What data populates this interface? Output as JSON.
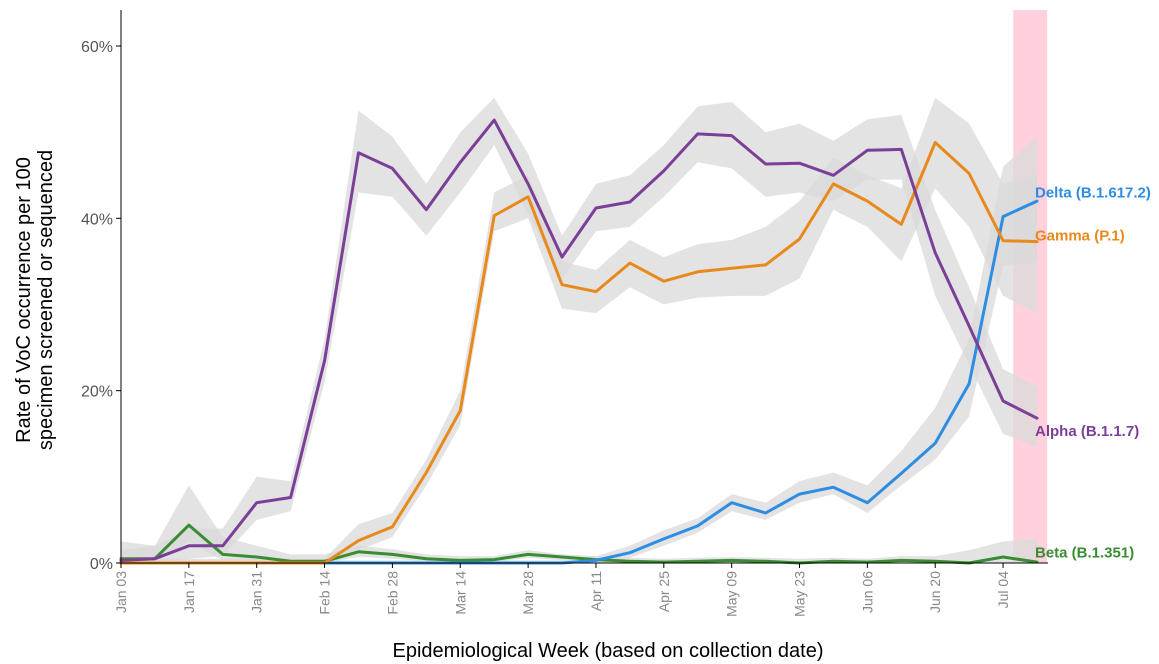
{
  "chart_data": {
    "type": "line",
    "xlabel": "Epidemiological Week (based on collection date)",
    "ylabel_lines": [
      "Rate of VoC occurrence per 100",
      "specimen screened or sequenced"
    ],
    "ylim": [
      0,
      64
    ],
    "yticks": [
      {
        "value": 0,
        "label": "0%"
      },
      {
        "value": 20,
        "label": "20%"
      },
      {
        "value": 40,
        "label": "40%"
      },
      {
        "value": 60,
        "label": "60%"
      }
    ],
    "xlim": [
      0,
      27.5
    ],
    "xticks": [
      {
        "value": 0,
        "label": "Jan 03"
      },
      {
        "value": 2,
        "label": "Jan 17"
      },
      {
        "value": 4,
        "label": "Jan 31"
      },
      {
        "value": 6,
        "label": "Feb 14"
      },
      {
        "value": 8,
        "label": "Feb 28"
      },
      {
        "value": 10,
        "label": "Mar 14"
      },
      {
        "value": 12,
        "label": "Mar 28"
      },
      {
        "value": 14,
        "label": "Apr 11"
      },
      {
        "value": 16,
        "label": "Apr 25"
      },
      {
        "value": 18,
        "label": "May 09"
      },
      {
        "value": 20,
        "label": "May 23"
      },
      {
        "value": 22,
        "label": "Jun 06"
      },
      {
        "value": 24,
        "label": "Jun 20"
      },
      {
        "value": 26,
        "label": "Jul 04"
      }
    ],
    "highlight": {
      "from": 26.3,
      "to": 27.3,
      "color": "#ffd1dc"
    },
    "ci_color": "#d9d9d9",
    "series": [
      {
        "name": "Alpha (B.1.1.7)",
        "color": "#7b3f98",
        "x": [
          0,
          1,
          2,
          3,
          4,
          5,
          6,
          7,
          8,
          9,
          10,
          11,
          12,
          13,
          14,
          15,
          16,
          17,
          18,
          19,
          20,
          21,
          22,
          23,
          24,
          25,
          26,
          27
        ],
        "values": [
          0.3,
          0.5,
          2.0,
          2.0,
          7.0,
          7.6,
          23.5,
          47.6,
          45.8,
          41.0,
          46.5,
          51.4,
          44.0,
          35.5,
          41.2,
          41.9,
          45.5,
          49.8,
          49.6,
          46.3,
          46.4,
          45.0,
          47.9,
          48.0,
          36.0,
          27.5,
          18.8,
          16.8
        ],
        "lower": [
          0,
          0,
          0.5,
          0.8,
          5,
          6,
          21,
          43,
          42.5,
          38,
          43,
          48.5,
          40.5,
          33,
          38.5,
          39,
          42.5,
          46.5,
          45.8,
          42.5,
          43,
          42,
          44.5,
          44.5,
          31,
          23,
          15,
          13.5
        ],
        "upper": [
          1.5,
          2,
          4,
          4,
          10,
          9.5,
          26,
          52.5,
          49.5,
          44,
          50,
          54,
          47.5,
          38,
          44,
          45,
          48.5,
          53,
          53.5,
          50,
          51,
          49,
          51.5,
          52,
          41,
          32,
          22.5,
          20.5
        ]
      },
      {
        "name": "Gamma (P.1)",
        "color": "#e8891b",
        "x": [
          0,
          1,
          2,
          3,
          4,
          5,
          6,
          7,
          8,
          9,
          10,
          11,
          12,
          13,
          14,
          15,
          16,
          17,
          18,
          19,
          20,
          21,
          22,
          23,
          24,
          25,
          26,
          27
        ],
        "values": [
          0,
          0,
          0,
          0,
          0,
          0,
          0,
          2.6,
          4.2,
          10.5,
          17.7,
          40.3,
          42.5,
          32.3,
          31.5,
          34.8,
          32.7,
          33.8,
          34.2,
          34.6,
          37.6,
          44.0,
          42.0,
          39.3,
          48.8,
          45.2,
          37.4,
          37.3
        ],
        "lower": [
          0,
          0,
          0,
          0,
          0,
          0,
          0,
          1.5,
          3,
          9,
          16,
          38.5,
          40,
          29.5,
          29,
          32,
          30,
          30.8,
          31,
          31,
          33,
          41,
          39,
          35,
          43.5,
          39,
          31,
          29
        ],
        "upper": [
          0.5,
          0.5,
          0.5,
          0.5,
          0.5,
          0.5,
          0.5,
          4.5,
          5.8,
          12,
          20,
          43,
          45,
          35,
          34,
          37.5,
          35.5,
          37,
          37.5,
          39,
          42,
          47,
          45,
          43.5,
          54,
          51,
          44,
          45
        ]
      },
      {
        "name": "Delta (B.1.617.2)",
        "color": "#2e8de3",
        "x": [
          0,
          1,
          2,
          3,
          4,
          5,
          6,
          7,
          8,
          9,
          10,
          11,
          12,
          13,
          14,
          15,
          16,
          17,
          18,
          19,
          20,
          21,
          22,
          23,
          24,
          25,
          26,
          27
        ],
        "values": [
          0,
          0,
          0,
          0,
          0,
          0,
          0,
          0,
          0,
          0,
          0,
          0,
          0,
          0,
          0.3,
          1.2,
          2.8,
          4.3,
          7.0,
          5.8,
          8.0,
          8.8,
          7.0,
          10.4,
          13.9,
          20.8,
          40.2,
          42.0
        ],
        "lower": [
          0,
          0,
          0,
          0,
          0,
          0,
          0,
          0,
          0,
          0,
          0,
          0,
          0,
          0,
          0,
          0.6,
          2,
          3.5,
          6,
          5,
          7,
          8,
          5.8,
          9,
          12,
          17,
          34.5,
          35
        ],
        "upper": [
          0.3,
          0.3,
          0.3,
          0.3,
          0.3,
          0.3,
          0.3,
          0.3,
          0.3,
          0.3,
          0.3,
          0.3,
          0.3,
          0.3,
          0.8,
          2,
          3.8,
          5.2,
          8,
          7,
          9.5,
          10.5,
          9,
          13,
          18,
          26,
          46,
          49.5
        ]
      },
      {
        "name": "Beta (B.1.351)",
        "color": "#3a8c32",
        "x": [
          0,
          1,
          2,
          3,
          4,
          5,
          6,
          7,
          8,
          9,
          10,
          11,
          12,
          13,
          14,
          15,
          16,
          17,
          18,
          19,
          20,
          21,
          22,
          23,
          24,
          25,
          26,
          27
        ],
        "values": [
          0.5,
          0.5,
          4.4,
          1.0,
          0.7,
          0.2,
          0.2,
          1.3,
          1.0,
          0.5,
          0.3,
          0.4,
          1.0,
          0.7,
          0.4,
          0.2,
          0.1,
          0.2,
          0.3,
          0.2,
          0,
          0.2,
          0.1,
          0.3,
          0.2,
          0,
          0.7,
          0.1
        ],
        "lower": [
          0,
          0,
          2.5,
          0.3,
          0.2,
          0,
          0,
          0.7,
          0.5,
          0.2,
          0.1,
          0.1,
          0.6,
          0.3,
          0.1,
          0,
          0,
          0,
          0,
          0,
          0,
          0,
          0,
          0,
          0,
          0,
          0,
          0
        ],
        "upper": [
          2.5,
          2,
          9,
          3,
          2,
          1,
          1,
          2,
          1.6,
          1,
          0.8,
          0.8,
          1.5,
          1,
          0.8,
          0.6,
          0.5,
          0.6,
          0.7,
          0.6,
          0.5,
          0.6,
          0.5,
          0.8,
          0.8,
          1.5,
          2.5,
          2.8
        ]
      }
    ],
    "series_label_positions": [
      {
        "series": 0,
        "label": "Alpha (B.1.1.7)",
        "y": 15.3
      },
      {
        "series": 1,
        "label": "Gamma (P.1)",
        "y": 38.0
      },
      {
        "series": 2,
        "label": "Delta (B.1.617.2)",
        "y": 43.0
      },
      {
        "series": 3,
        "label": "Beta (B.1.351)",
        "y": 1.2
      }
    ]
  }
}
